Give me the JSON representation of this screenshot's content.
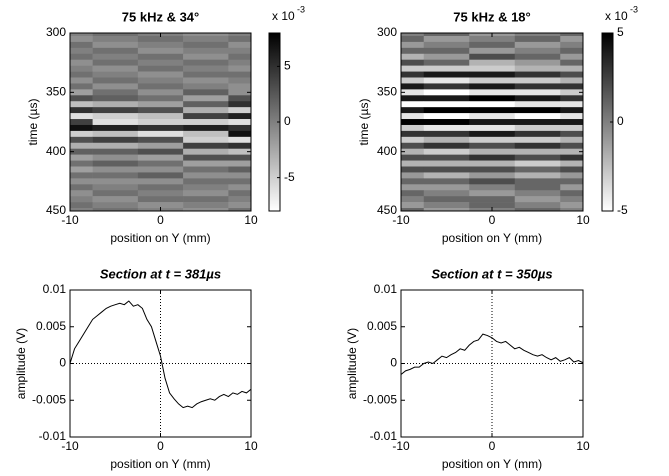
{
  "chart_data": [
    {
      "type": "heatmap",
      "title": "75 kHz & 34°",
      "xlabel": "position on Y (mm)",
      "ylabel": "time (µs)",
      "x": [
        -10,
        -5,
        0,
        5,
        10
      ],
      "y": [
        300,
        305,
        310,
        315,
        320,
        325,
        330,
        335,
        340,
        345,
        350,
        355,
        360,
        365,
        370,
        375,
        380,
        385,
        390,
        395,
        400,
        405,
        410,
        415,
        420,
        425,
        430,
        435,
        440,
        445,
        450
      ],
      "z": [
        [
          0,
          1,
          0,
          -1,
          0
        ],
        [
          -1,
          0,
          1,
          0,
          1
        ],
        [
          1,
          -1,
          0,
          1,
          -1
        ],
        [
          0,
          1,
          -1,
          0,
          0
        ],
        [
          1,
          0,
          1,
          -1,
          1
        ],
        [
          -1,
          1,
          0,
          1,
          0
        ],
        [
          0,
          -1,
          1,
          0,
          -1
        ],
        [
          1,
          0,
          -1,
          1,
          1
        ],
        [
          -1,
          1,
          0,
          -1,
          0
        ],
        [
          1,
          -1,
          1,
          0,
          -1
        ],
        [
          -2,
          1,
          -1,
          2,
          -1
        ],
        [
          3,
          2,
          1,
          -2,
          3
        ],
        [
          -4,
          -3,
          -2,
          2,
          5
        ],
        [
          5,
          4,
          3,
          -3,
          -5
        ],
        [
          -6,
          -5,
          -4,
          4,
          6
        ],
        [
          4,
          -6,
          -5,
          -5,
          -6
        ],
        [
          7,
          6,
          5,
          6,
          5
        ],
        [
          -5,
          -4,
          -6,
          -4,
          7
        ],
        [
          3,
          4,
          3,
          -5,
          -6
        ],
        [
          -3,
          -3,
          -2,
          4,
          5
        ],
        [
          2,
          2,
          3,
          -3,
          -4
        ],
        [
          -2,
          -1,
          -2,
          3,
          3
        ],
        [
          1,
          2,
          1,
          -2,
          -2
        ],
        [
          -2,
          -1,
          -1,
          1,
          2
        ],
        [
          1,
          1,
          2,
          -1,
          -1
        ],
        [
          -1,
          -1,
          -1,
          1,
          1
        ],
        [
          1,
          0,
          1,
          0,
          -1
        ],
        [
          -1,
          1,
          0,
          -1,
          1
        ],
        [
          0,
          -1,
          1,
          1,
          0
        ],
        [
          1,
          0,
          -1,
          0,
          -1
        ],
        [
          0,
          1,
          0,
          -1,
          1
        ]
      ],
      "xlim": [
        -10,
        10
      ],
      "xticks": [
        -10,
        0,
        10
      ],
      "ylim": [
        300,
        450
      ],
      "yticks": [
        300,
        350,
        400,
        450
      ],
      "y_reversed": true,
      "zlim": [
        -8,
        8
      ],
      "zticks": [
        -5,
        0,
        5
      ],
      "colorbar_multiplier": "x 10",
      "colorbar_exponent": "-3",
      "colormap": "gray"
    },
    {
      "type": "heatmap",
      "title": "75 kHz & 18°",
      "xlabel": "position on Y (mm)",
      "ylabel": "time (µs)",
      "x": [
        -10,
        -5,
        0,
        5,
        10
      ],
      "y": [
        300,
        305,
        310,
        315,
        320,
        325,
        330,
        335,
        340,
        345,
        350,
        355,
        360,
        365,
        370,
        375,
        380,
        385,
        390,
        395,
        400,
        405,
        410,
        415,
        420,
        425,
        430,
        435,
        440,
        445,
        450
      ],
      "z": [
        [
          0,
          1,
          -1,
          0,
          1
        ],
        [
          1,
          -1,
          0,
          1,
          -1
        ],
        [
          -1,
          0,
          1,
          -1,
          0
        ],
        [
          1,
          1,
          -1,
          0,
          1
        ],
        [
          -2,
          -1,
          2,
          1,
          -1
        ],
        [
          2,
          1,
          -2,
          -1,
          1
        ],
        [
          -3,
          -3,
          -3,
          -2,
          -2
        ],
        [
          3,
          4,
          4,
          3,
          2
        ],
        [
          -3,
          -4,
          -3,
          -3,
          -2
        ],
        [
          4,
          3,
          4,
          3,
          3
        ],
        [
          -4,
          -5,
          -4,
          -4,
          -3
        ],
        [
          4,
          4,
          5,
          4,
          3
        ],
        [
          -5,
          -5,
          -5,
          -4,
          -4
        ],
        [
          4,
          5,
          5,
          5,
          4
        ],
        [
          -4,
          -5,
          -4,
          -5,
          -4
        ],
        [
          5,
          5,
          4,
          4,
          4
        ],
        [
          -3,
          -4,
          -4,
          -3,
          -3
        ],
        [
          3,
          3,
          4,
          3,
          2
        ],
        [
          -3,
          -2,
          -3,
          -3,
          -2
        ],
        [
          2,
          3,
          2,
          3,
          2
        ],
        [
          -2,
          -3,
          -2,
          -2,
          -2
        ],
        [
          2,
          2,
          3,
          2,
          3
        ],
        [
          -2,
          -2,
          -2,
          -3,
          -2
        ],
        [
          2,
          2,
          2,
          1,
          2
        ],
        [
          -1,
          -2,
          -1,
          -2,
          -1
        ],
        [
          1,
          1,
          2,
          1,
          1
        ],
        [
          -1,
          -1,
          0,
          1,
          -1
        ],
        [
          1,
          0,
          -1,
          0,
          1
        ],
        [
          0,
          1,
          1,
          -1,
          0
        ],
        [
          -1,
          0,
          1,
          0,
          -1
        ],
        [
          1,
          -1,
          0,
          1,
          0
        ]
      ],
      "xlim": [
        -10,
        10
      ],
      "xticks": [
        -10,
        0,
        10
      ],
      "ylim": [
        300,
        450
      ],
      "yticks": [
        300,
        350,
        400,
        450
      ],
      "y_reversed": true,
      "zlim": [
        -5,
        5
      ],
      "zticks": [
        -5,
        0,
        5
      ],
      "colorbar_multiplier": "x 10",
      "colorbar_exponent": "-3",
      "colormap": "gray"
    },
    {
      "type": "line",
      "title": "Section at t = 381µs",
      "xlabel": "position on Y (mm)",
      "ylabel": "amplitude (V)",
      "x": [
        -10,
        -9.5,
        -9,
        -8.5,
        -8,
        -7.5,
        -7,
        -6.5,
        -6,
        -5.5,
        -5,
        -4.5,
        -4,
        -3.5,
        -3,
        -2.5,
        -2,
        -1.5,
        -1,
        -0.5,
        0,
        0.5,
        1,
        1.5,
        2,
        2.5,
        3,
        3.5,
        4,
        4.5,
        5,
        5.5,
        6,
        6.5,
        7,
        7.5,
        8,
        8.5,
        9,
        9.5,
        10
      ],
      "series": [
        {
          "color": "#000000",
          "values": [
            0,
            0.002,
            0.003,
            0.004,
            0.005,
            0.006,
            0.0065,
            0.007,
            0.0075,
            0.0078,
            0.008,
            0.0082,
            0.008,
            0.0085,
            0.0078,
            0.008,
            0.0075,
            0.006,
            0.005,
            0.003,
            0.001,
            -0.002,
            -0.004,
            -0.0048,
            -0.0055,
            -0.006,
            -0.0058,
            -0.006,
            -0.0055,
            -0.0052,
            -0.005,
            -0.0048,
            -0.005,
            -0.0045,
            -0.0042,
            -0.0045,
            -0.004,
            -0.0042,
            -0.0038,
            -0.004,
            -0.0035
          ]
        }
      ],
      "xlim": [
        -10,
        10
      ],
      "xticks": [
        -10,
        0,
        10
      ],
      "ylim": [
        -0.01,
        0.01
      ],
      "yticks": [
        -0.01,
        -0.005,
        0,
        0.005,
        0.01
      ],
      "zero_lines": true
    },
    {
      "type": "line",
      "title": "Section at t = 350µs",
      "xlabel": "position on Y (mm)",
      "ylabel": "amplitude (V)",
      "x": [
        -10,
        -9.5,
        -9,
        -8.5,
        -8,
        -7.5,
        -7,
        -6.5,
        -6,
        -5.5,
        -5,
        -4.5,
        -4,
        -3.5,
        -3,
        -2.5,
        -2,
        -1.5,
        -1,
        -0.5,
        0,
        0.5,
        1,
        1.5,
        2,
        2.5,
        3,
        3.5,
        4,
        4.5,
        5,
        5.5,
        6,
        6.5,
        7,
        7.5,
        8,
        8.5,
        9,
        9.5,
        10
      ],
      "series": [
        {
          "color": "#000000",
          "values": [
            -0.0015,
            -0.001,
            -0.0008,
            -0.0005,
            -0.0005,
            0,
            0.0002,
            0,
            0.0005,
            0.001,
            0.0008,
            0.0012,
            0.0015,
            0.002,
            0.0018,
            0.0025,
            0.003,
            0.0032,
            0.004,
            0.0038,
            0.0035,
            0.003,
            0.0028,
            0.003,
            0.0025,
            0.002,
            0.0022,
            0.0018,
            0.0015,
            0.0012,
            0.001,
            0.0012,
            0.0008,
            0.0005,
            0.0008,
            0.0003,
            0.0005,
            0.0008,
            0.0002,
            0.0004,
            0.0001
          ]
        }
      ],
      "xlim": [
        -10,
        10
      ],
      "xticks": [
        -10,
        0,
        10
      ],
      "ylim": [
        -0.01,
        0.01
      ],
      "yticks": [
        -0.01,
        -0.005,
        0,
        0.005,
        0.01
      ],
      "zero_lines": true
    }
  ]
}
